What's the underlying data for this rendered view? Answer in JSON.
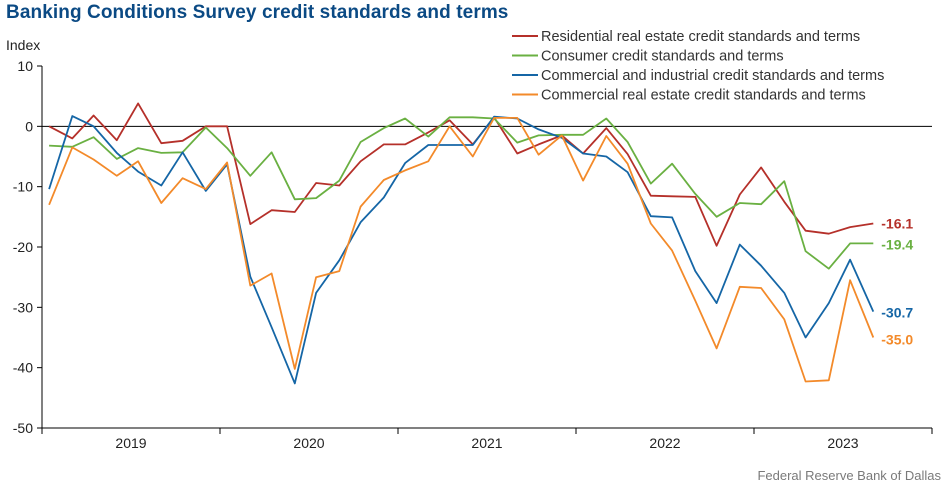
{
  "title": "Banking Conditions Survey credit standards and terms",
  "source": "Federal Reserve Bank of Dallas",
  "chart_data": {
    "type": "line",
    "ylabel": "Index",
    "ylim": [
      -50,
      10
    ],
    "yticks": [
      10,
      0,
      -10,
      -20,
      -30,
      -40,
      -50
    ],
    "xlim": [
      2018.5,
      2023.5
    ],
    "x_tick_labels": [
      "2019",
      "2020",
      "2021",
      "2022",
      "2023"
    ],
    "x_tick_positions": [
      2019,
      2020,
      2021,
      2022,
      2023
    ],
    "zero_line": true,
    "legend_position": "top-right",
    "x": [
      2018.54,
      2018.67,
      2018.79,
      2018.92,
      2019.04,
      2019.17,
      2019.29,
      2019.42,
      2019.54,
      2019.67,
      2019.79,
      2019.92,
      2020.04,
      2020.17,
      2020.29,
      2020.42,
      2020.54,
      2020.67,
      2020.79,
      2020.92,
      2021.04,
      2021.17,
      2021.29,
      2021.42,
      2021.54,
      2021.67,
      2021.79,
      2021.92,
      2022.04,
      2022.17,
      2022.29,
      2022.42,
      2022.54,
      2022.67,
      2022.79,
      2022.92,
      2023.04,
      2023.17
    ],
    "series": [
      {
        "name": "Residential real estate credit standards and terms",
        "color": "#b5302a",
        "end_label": "-16.1",
        "values": [
          0.0,
          -2.0,
          1.8,
          -2.3,
          3.8,
          -2.8,
          -2.4,
          0.0,
          0.0,
          -16.2,
          -13.9,
          -14.2,
          -9.4,
          -9.8,
          -5.8,
          -3.0,
          -3.0,
          -1.0,
          1.0,
          -3.0,
          1.5,
          -4.5,
          -3.0,
          -1.5,
          -4.5,
          -0.3,
          -4.6,
          -11.5,
          -11.6,
          -11.7,
          -19.8,
          -11.3,
          -6.8,
          -12.5,
          -17.3,
          -17.8,
          -16.7,
          -16.1
        ]
      },
      {
        "name": "Consumer credit standards and terms",
        "color": "#6ab042",
        "end_label": "-19.4",
        "values": [
          -3.2,
          -3.4,
          -1.8,
          -5.4,
          -3.6,
          -4.4,
          -4.3,
          -0.2,
          -3.6,
          -8.2,
          -4.3,
          -12.1,
          -11.9,
          -9.0,
          -2.6,
          -0.3,
          1.3,
          -1.7,
          1.5,
          1.5,
          1.3,
          -2.7,
          -1.5,
          -1.4,
          -1.4,
          1.3,
          -2.6,
          -9.5,
          -6.2,
          -11.2,
          -15.0,
          -12.7,
          -12.9,
          -9.1,
          -20.7,
          -23.6,
          -19.4,
          -19.4
        ]
      },
      {
        "name": "Commercial and industrial credit standards and terms",
        "color": "#1566a6",
        "end_label": "-30.7",
        "values": [
          -10.4,
          1.7,
          0.0,
          -4.4,
          -7.5,
          -9.8,
          -4.3,
          -10.7,
          -6.3,
          -24.9,
          -33.3,
          -42.6,
          -27.6,
          -22.2,
          -15.9,
          -11.8,
          -6.1,
          -3.1,
          -3.1,
          -3.1,
          1.6,
          1.3,
          -0.5,
          -1.9,
          -4.5,
          -5.0,
          -7.6,
          -14.9,
          -15.1,
          -24.0,
          -29.3,
          -19.6,
          -23.1,
          -27.6,
          -35.0,
          -29.3,
          -22.1,
          -30.7
        ]
      },
      {
        "name": "Commercial real estate credit standards and terms",
        "color": "#f38a2a",
        "end_label": "-35.0",
        "values": [
          -13.0,
          -3.5,
          -5.5,
          -8.2,
          -5.8,
          -12.7,
          -8.6,
          -10.4,
          -6.0,
          -26.4,
          -24.4,
          -40.2,
          -25.0,
          -24.0,
          -13.3,
          -8.9,
          -7.3,
          -5.8,
          0.0,
          -5.0,
          1.4,
          1.4,
          -4.7,
          -1.5,
          -9.0,
          -1.6,
          -6.2,
          -16.1,
          -20.6,
          -28.9,
          -36.8,
          -26.6,
          -26.8,
          -32.0,
          -42.3,
          -42.1,
          -25.5,
          -35.0
        ]
      }
    ]
  }
}
